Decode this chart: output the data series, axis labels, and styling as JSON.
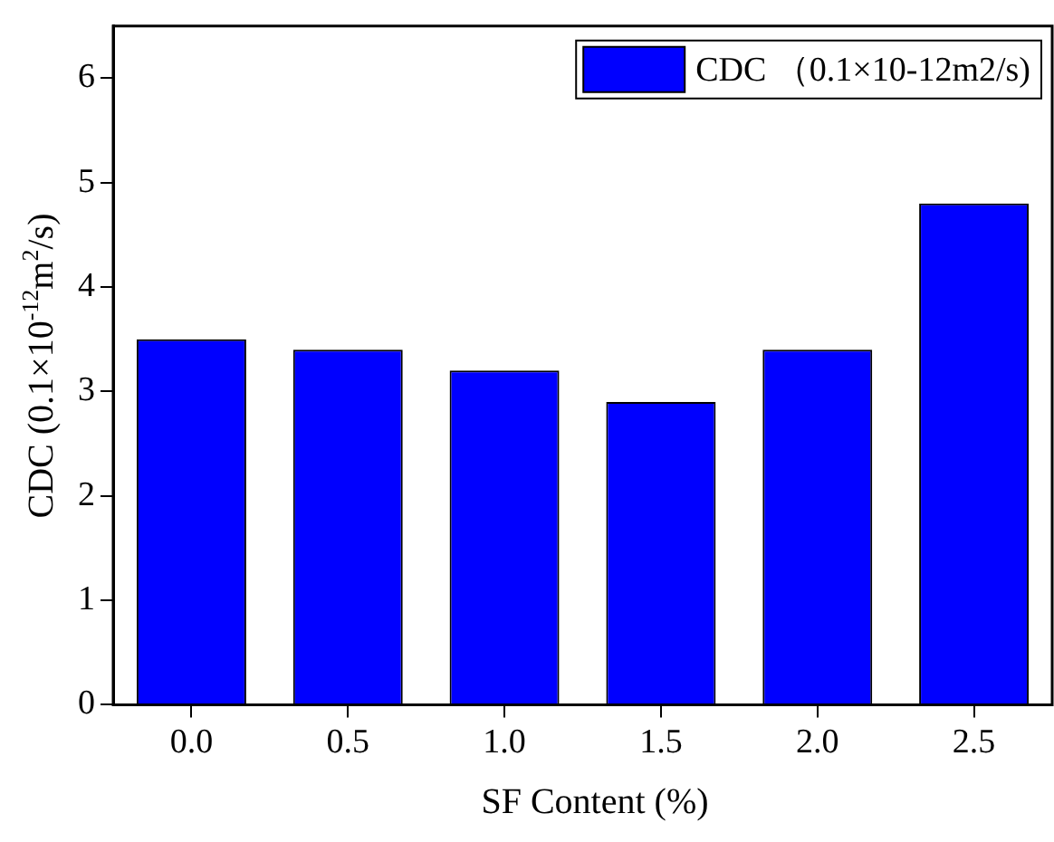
{
  "chart_data": {
    "type": "bar",
    "xlabel": "SF Content (%)",
    "ylabel": "CDC (0.1×10$^{-12}$m$^{2}$/s)",
    "categories": [
      "0.0",
      "0.5",
      "1.0",
      "1.5",
      "2.0",
      "2.5"
    ],
    "series": [
      {
        "name": "CDC （0.1×10-12m2/s)",
        "color": "#0000ff",
        "values": [
          3.5,
          3.4,
          3.2,
          2.9,
          3.4,
          4.8
        ]
      }
    ],
    "ylim": [
      0,
      6.5
    ],
    "yticks": [
      0,
      1,
      2,
      3,
      4,
      5,
      6
    ],
    "grid": false,
    "legend": "top right"
  }
}
